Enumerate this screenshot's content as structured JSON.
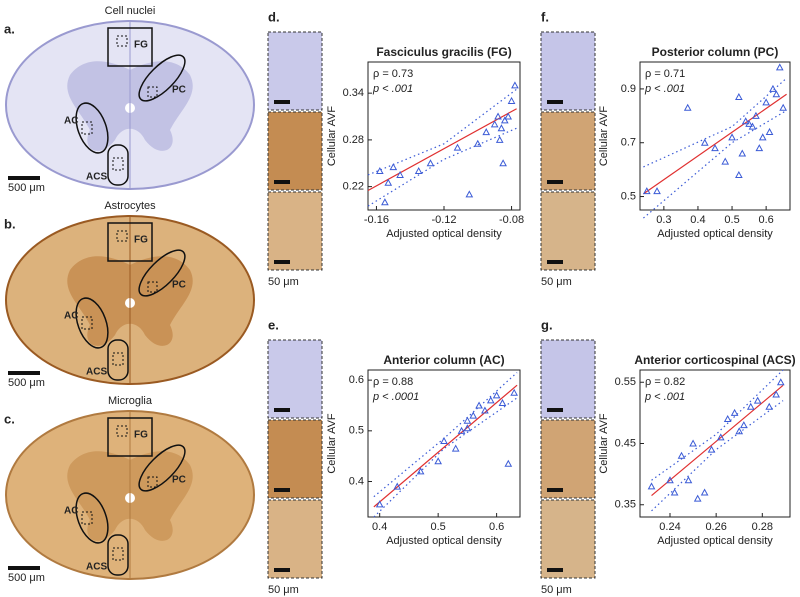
{
  "sections": [
    {
      "label": "a.",
      "title": "Cell nuclei",
      "regions": [
        "FG",
        "PC",
        "AC",
        "ACS"
      ],
      "scale": "500 μm"
    },
    {
      "label": "b.",
      "title": "Astrocytes",
      "regions": [
        "FG",
        "PC",
        "AC",
        "ACS"
      ],
      "scale": "500 μm"
    },
    {
      "label": "c.",
      "title": "Microglia",
      "regions": [
        "FG",
        "PC",
        "AC",
        "ACS"
      ],
      "scale": "500 μm"
    }
  ],
  "chart_data": [
    {
      "type": "scatter",
      "panel_label": "d.",
      "title": "Fasciculus gracilis (FG)",
      "x_label": "Adjusted optical density",
      "y_label": "Cellular AVF",
      "rho": "ρ =  0.73",
      "p": "p < .001",
      "thumbnail_scale": "50 μm",
      "xlim": [
        -0.165,
        -0.075
      ],
      "ylim": [
        0.19,
        0.38
      ],
      "xticks": [
        -0.16,
        -0.12,
        -0.08
      ],
      "yticks": [
        0.22,
        0.28,
        0.34
      ],
      "points": {
        "color": "#3b5bd6",
        "x": [
          -0.158,
          -0.153,
          -0.15,
          -0.155,
          -0.146,
          -0.135,
          -0.128,
          -0.112,
          -0.105,
          -0.1,
          -0.095,
          -0.09,
          -0.088,
          -0.087,
          -0.085,
          -0.084,
          -0.082,
          -0.08,
          -0.078,
          -0.086
        ],
        "y": [
          0.24,
          0.225,
          0.245,
          0.2,
          0.235,
          0.24,
          0.25,
          0.27,
          0.21,
          0.275,
          0.29,
          0.3,
          0.31,
          0.28,
          0.25,
          0.305,
          0.31,
          0.33,
          0.35,
          0.295
        ]
      },
      "fit": {
        "color": "#e03030",
        "x": [
          -0.165,
          -0.077
        ],
        "y": [
          0.215,
          0.32
        ]
      },
      "ci_upper": {
        "color": "#3b5bd6",
        "x": [
          -0.165,
          -0.12,
          -0.077
        ],
        "y": [
          0.235,
          0.275,
          0.345
        ]
      },
      "ci_lower": {
        "color": "#3b5bd6",
        "x": [
          -0.165,
          -0.12,
          -0.077
        ],
        "y": [
          0.195,
          0.255,
          0.295
        ]
      }
    },
    {
      "type": "scatter",
      "panel_label": "e.",
      "title": "Anterior column (AC)",
      "x_label": "Adjusted optical density",
      "y_label": "Cellular AVF",
      "rho": "ρ =  0.88",
      "p": "p < .0001",
      "thumbnail_scale": "50 μm",
      "xlim": [
        0.38,
        0.64
      ],
      "ylim": [
        0.33,
        0.62
      ],
      "xticks": [
        0.4,
        0.5,
        0.6
      ],
      "yticks": [
        0.4,
        0.5,
        0.6
      ],
      "points": {
        "color": "#3b5bd6",
        "x": [
          0.4,
          0.43,
          0.47,
          0.5,
          0.51,
          0.53,
          0.54,
          0.55,
          0.56,
          0.57,
          0.58,
          0.59,
          0.6,
          0.61,
          0.62,
          0.63,
          0.55
        ],
        "y": [
          0.355,
          0.39,
          0.42,
          0.44,
          0.48,
          0.465,
          0.5,
          0.52,
          0.53,
          0.55,
          0.54,
          0.56,
          0.57,
          0.555,
          0.435,
          0.575,
          0.505
        ]
      },
      "fit": {
        "color": "#e03030",
        "x": [
          0.39,
          0.635
        ],
        "y": [
          0.35,
          0.59
        ]
      },
      "ci_upper": {
        "color": "#3b5bd6",
        "x": [
          0.39,
          0.51,
          0.635
        ],
        "y": [
          0.37,
          0.485,
          0.615
        ]
      },
      "ci_lower": {
        "color": "#3b5bd6",
        "x": [
          0.39,
          0.51,
          0.635
        ],
        "y": [
          0.33,
          0.465,
          0.565
        ]
      }
    },
    {
      "type": "scatter",
      "panel_label": "f.",
      "title": "Posterior column (PC)",
      "x_label": "Adjusted optical density",
      "y_label": "Cellular AVF",
      "rho": "ρ =  0.71",
      "p": "p < .001",
      "thumbnail_scale": "50 μm",
      "xlim": [
        0.23,
        0.67
      ],
      "ylim": [
        0.45,
        1.0
      ],
      "xticks": [
        0.3,
        0.4,
        0.5,
        0.6
      ],
      "yticks": [
        0.5,
        0.7,
        0.9
      ],
      "points": {
        "color": "#3b5bd6",
        "x": [
          0.25,
          0.28,
          0.37,
          0.42,
          0.45,
          0.48,
          0.5,
          0.52,
          0.53,
          0.54,
          0.55,
          0.56,
          0.57,
          0.58,
          0.59,
          0.6,
          0.62,
          0.63,
          0.64,
          0.65,
          0.61,
          0.52
        ],
        "y": [
          0.52,
          0.52,
          0.83,
          0.7,
          0.68,
          0.63,
          0.72,
          0.87,
          0.66,
          0.78,
          0.77,
          0.76,
          0.8,
          0.68,
          0.72,
          0.85,
          0.9,
          0.88,
          0.98,
          0.83,
          0.74,
          0.58
        ]
      },
      "fit": {
        "color": "#e03030",
        "x": [
          0.24,
          0.66
        ],
        "y": [
          0.51,
          0.88
        ]
      },
      "ci_upper": {
        "color": "#3b5bd6",
        "x": [
          0.24,
          0.5,
          0.66
        ],
        "y": [
          0.61,
          0.76,
          0.94
        ]
      },
      "ci_lower": {
        "color": "#3b5bd6",
        "x": [
          0.24,
          0.5,
          0.66
        ],
        "y": [
          0.42,
          0.7,
          0.82
        ]
      }
    },
    {
      "type": "scatter",
      "panel_label": "g.",
      "title": "Anterior corticospinal (ACS)",
      "x_label": "Adjusted optical density",
      "y_label": "Cellular AVF",
      "rho": "ρ =  0.82",
      "p": "p < .001",
      "thumbnail_scale": "50 μm",
      "xlim": [
        0.227,
        0.292
      ],
      "ylim": [
        0.33,
        0.57
      ],
      "xticks": [
        0.24,
        0.26,
        0.28
      ],
      "yticks": [
        0.35,
        0.45,
        0.55
      ],
      "points": {
        "color": "#3b5bd6",
        "x": [
          0.232,
          0.24,
          0.242,
          0.245,
          0.248,
          0.25,
          0.252,
          0.255,
          0.258,
          0.262,
          0.265,
          0.268,
          0.27,
          0.272,
          0.275,
          0.278,
          0.283,
          0.288,
          0.286
        ],
        "y": [
          0.38,
          0.39,
          0.37,
          0.43,
          0.39,
          0.45,
          0.36,
          0.37,
          0.44,
          0.46,
          0.49,
          0.5,
          0.47,
          0.48,
          0.51,
          0.52,
          0.51,
          0.55,
          0.53
        ]
      },
      "fit": {
        "color": "#e03030",
        "x": [
          0.232,
          0.289
        ],
        "y": [
          0.365,
          0.545
        ]
      },
      "ci_upper": {
        "color": "#3b5bd6",
        "x": [
          0.232,
          0.26,
          0.289
        ],
        "y": [
          0.39,
          0.465,
          0.57
        ]
      },
      "ci_lower": {
        "color": "#3b5bd6",
        "x": [
          0.232,
          0.26,
          0.289
        ],
        "y": [
          0.34,
          0.44,
          0.52
        ]
      }
    }
  ]
}
